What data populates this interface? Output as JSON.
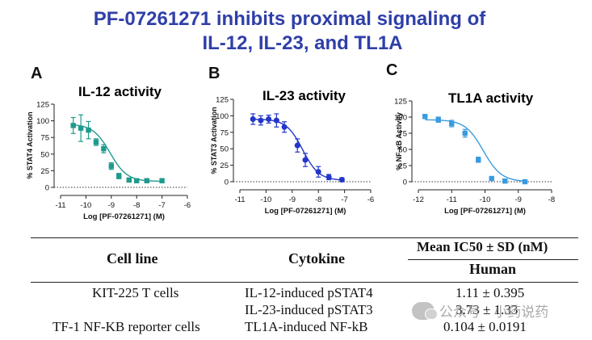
{
  "header": {
    "title_line1": "PF-07261271 inhibits proximal signaling of",
    "title_line2": "IL-12, IL-23, and TL1A"
  },
  "colors": {
    "title": "#2f3fa8",
    "series_a": "#1f9a8e",
    "series_b": "#2336c8",
    "series_c": "#3a9be0"
  },
  "chart_data": [
    {
      "panel": "A",
      "type": "scatter",
      "title": "IL-12 activity",
      "xlabel": "Log [PF-07261271] (M)",
      "ylabel": "% STAT4 Activation",
      "xlim": [
        -11,
        -6
      ],
      "ylim": [
        0,
        125
      ],
      "xticks": [
        -11,
        -10,
        -9,
        -8,
        -7,
        -6
      ],
      "yticks": [
        0,
        25,
        50,
        75,
        100,
        125
      ],
      "reference_line_y": 0,
      "color": "#1f9a8e",
      "points": [
        {
          "x": -10.5,
          "y": 93,
          "err": 12
        },
        {
          "x": -10.2,
          "y": 89,
          "err": 20
        },
        {
          "x": -9.9,
          "y": 86,
          "err": 13
        },
        {
          "x": -9.6,
          "y": 68,
          "err": 5
        },
        {
          "x": -9.3,
          "y": 58,
          "err": 6
        },
        {
          "x": -9.0,
          "y": 32,
          "err": 5
        },
        {
          "x": -8.7,
          "y": 17,
          "err": 4
        },
        {
          "x": -8.3,
          "y": 11,
          "err": 3
        },
        {
          "x": -8.0,
          "y": 10,
          "err": 2
        },
        {
          "x": -7.6,
          "y": 10,
          "err": 3
        },
        {
          "x": -7.0,
          "y": 10,
          "err": 3
        }
      ],
      "curve": {
        "top": 95,
        "bottom": 9,
        "log_ic50": -9.05,
        "hill": 1.3
      }
    },
    {
      "panel": "B",
      "type": "scatter",
      "title": "IL-23 activity",
      "xlabel": "Log [PF-07261271] (M)",
      "ylabel": "% STAT3 Activation",
      "xlim": [
        -11,
        -6
      ],
      "ylim": [
        0,
        125
      ],
      "xticks": [
        -11,
        -10,
        -9,
        -8,
        -7,
        -6
      ],
      "yticks": [
        0,
        25,
        50,
        75,
        100,
        125
      ],
      "reference_line_y": 0,
      "color": "#2336c8",
      "points": [
        {
          "x": -10.5,
          "y": 95,
          "err": 8
        },
        {
          "x": -10.2,
          "y": 93,
          "err": 7
        },
        {
          "x": -9.9,
          "y": 95,
          "err": 6
        },
        {
          "x": -9.6,
          "y": 93,
          "err": 10
        },
        {
          "x": -9.3,
          "y": 83,
          "err": 8
        },
        {
          "x": -8.8,
          "y": 55,
          "err": 10
        },
        {
          "x": -8.5,
          "y": 33,
          "err": 10
        },
        {
          "x": -8.0,
          "y": 15,
          "err": 8
        },
        {
          "x": -7.6,
          "y": 7,
          "err": 4
        },
        {
          "x": -7.1,
          "y": 3,
          "err": 3
        }
      ],
      "curve": {
        "top": 95,
        "bottom": 2,
        "log_ic50": -8.6,
        "hill": 1.4
      }
    },
    {
      "panel": "C",
      "type": "scatter",
      "title": "TL1A activity",
      "xlabel": "Log [PF-07261271] (M)",
      "ylabel": "% NF-κB Activity",
      "xlim": [
        -12,
        -8
      ],
      "ylim": [
        0,
        125
      ],
      "xticks": [
        -12,
        -11,
        -10,
        -9,
        -8
      ],
      "yticks": [
        0,
        25,
        50,
        75,
        100,
        125
      ],
      "reference_line_y": 0,
      "color": "#3a9be0",
      "points": [
        {
          "x": -11.8,
          "y": 101,
          "err": 3
        },
        {
          "x": -11.4,
          "y": 96,
          "err": 4
        },
        {
          "x": -11.0,
          "y": 90,
          "err": 5
        },
        {
          "x": -10.6,
          "y": 75,
          "err": 6
        },
        {
          "x": -10.2,
          "y": 34,
          "err": 4
        },
        {
          "x": -9.8,
          "y": 5,
          "err": 2
        },
        {
          "x": -9.4,
          "y": 1,
          "err": 1
        },
        {
          "x": -8.8,
          "y": 0,
          "err": 1
        }
      ],
      "curve": {
        "top": 96,
        "bottom": 0,
        "log_ic50": -10.05,
        "hill": 1.6
      }
    }
  ],
  "table": {
    "col_cell_line": "Cell line",
    "col_cytokine": "Cytokine",
    "col_ic50": "Mean IC50 ± SD (nM)",
    "col_ic50_sub": "Human",
    "rows": [
      {
        "cell_line": "KIT-225 T cells",
        "cytokine": "IL-12-induced pSTAT4",
        "ic50": "1.11 ± 0.395"
      },
      {
        "cell_line": "",
        "cytokine": "IL-23-induced pSTAT3",
        "ic50": "3.73 ± 1.33"
      },
      {
        "cell_line": "TF-1 NF-KB reporter cells",
        "cytokine": "TL1A-induced NF-kB",
        "ic50": "0.104 ± 0.0191"
      }
    ]
  },
  "watermark": {
    "text": "公众号 · 小药说药",
    "icon": "wechat-icon"
  }
}
